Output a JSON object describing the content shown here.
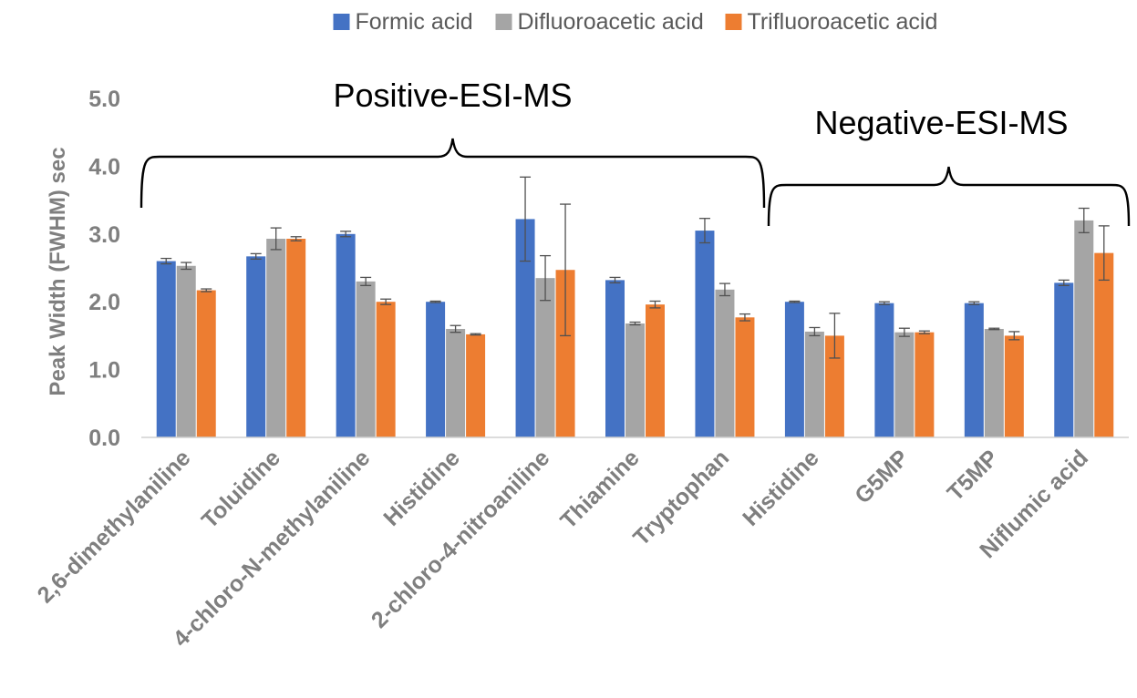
{
  "chart_data": {
    "type": "bar",
    "title": "",
    "xlabel": "",
    "ylabel": "Peak Width (FWHM) sec",
    "ylim": [
      0,
      5
    ],
    "yticks": [
      "0.0",
      "1.0",
      "2.0",
      "3.0",
      "4.0",
      "5.0"
    ],
    "grid": false,
    "legend_position": "top",
    "categories": [
      "2,6-dimethylaniline",
      "Toluidine",
      "4-chloro-N-methylaniline",
      "Histidine",
      "2-chloro-4-nitroaniline",
      "Thiamine",
      "Tryptophan",
      "Histidine",
      "G5MP",
      "T5MP",
      "Niflumic acid"
    ],
    "series": [
      {
        "name": "Formic acid",
        "color": "#4472c4",
        "values": [
          2.6,
          2.67,
          3.0,
          2.0,
          3.22,
          2.32,
          3.05,
          2.0,
          1.98,
          1.98,
          2.28
        ],
        "errors": [
          0.04,
          0.04,
          0.04,
          0.01,
          0.62,
          0.04,
          0.18,
          0.01,
          0.02,
          0.02,
          0.04
        ]
      },
      {
        "name": "Difluoroacetic acid",
        "color": "#a5a5a5",
        "values": [
          2.53,
          2.93,
          2.3,
          1.6,
          2.35,
          1.68,
          2.18,
          1.56,
          1.55,
          1.6,
          3.2
        ],
        "errors": [
          0.05,
          0.16,
          0.06,
          0.05,
          0.33,
          0.02,
          0.09,
          0.06,
          0.06,
          0.01,
          0.18
        ]
      },
      {
        "name": "Trifluoroacetic acid",
        "color": "#ed7d31",
        "values": [
          2.17,
          2.93,
          2.0,
          1.52,
          2.47,
          1.96,
          1.77,
          1.5,
          1.55,
          1.5,
          2.72
        ],
        "errors": [
          0.02,
          0.03,
          0.04,
          0.01,
          0.97,
          0.05,
          0.05,
          0.33,
          0.02,
          0.06,
          0.4
        ]
      }
    ],
    "annotations": {
      "positive": {
        "label": "Positive-ESI-MS",
        "first_category": 0,
        "last_category": 6
      },
      "negative": {
        "label": "Negative-ESI-MS",
        "first_category": 7,
        "last_category": 10
      }
    }
  }
}
